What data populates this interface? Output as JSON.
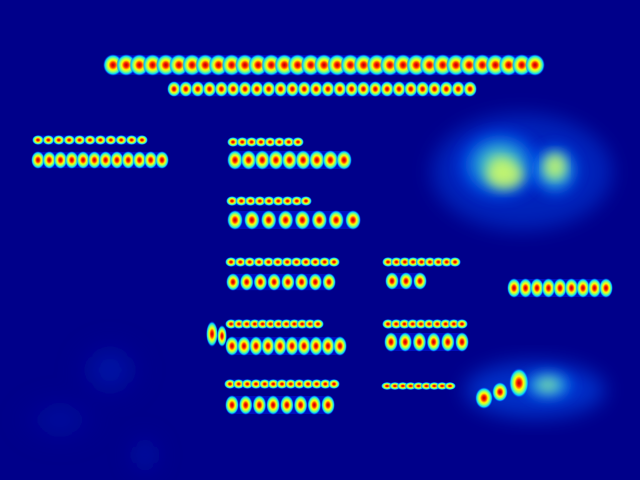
{
  "colors": {
    "background": "#00008a",
    "low": "#0010ff",
    "mid_low": "#00d0ff",
    "mid": "#80ff80",
    "mid_high": "#ffff00",
    "high": "#ff2000",
    "core": "#b00000"
  },
  "rows": [
    {
      "id": "title-line-1",
      "dots": 33
    },
    {
      "id": "title-line-2",
      "dots": 26
    },
    {
      "id": "col1-label",
      "dots": 11
    },
    {
      "id": "col1-value",
      "dots": 12
    },
    {
      "id": "col2-r1-label",
      "dots": 8
    },
    {
      "id": "col2-r1-value",
      "dots": 9
    },
    {
      "id": "col2-r2-label",
      "dots": 9
    },
    {
      "id": "col2-r2-value",
      "dots": 8
    },
    {
      "id": "col2-r3-label",
      "dots": 12
    },
    {
      "id": "col2-r3-value",
      "dots": 8
    },
    {
      "id": "col2-r4-label",
      "dots": 12
    },
    {
      "id": "col2-r4-value",
      "dots": 10
    },
    {
      "id": "col2-r5-label",
      "dots": 13
    },
    {
      "id": "col2-r5-value",
      "dots": 8
    },
    {
      "id": "col3-r1-label",
      "dots": 9
    },
    {
      "id": "col3-r1-value",
      "dots": 3
    },
    {
      "id": "col3-r2-label",
      "dots": 10
    },
    {
      "id": "col3-r2-value",
      "dots": 6
    },
    {
      "id": "col3-r3-label",
      "dots": 9
    },
    {
      "id": "right-value",
      "dots": 9
    }
  ]
}
